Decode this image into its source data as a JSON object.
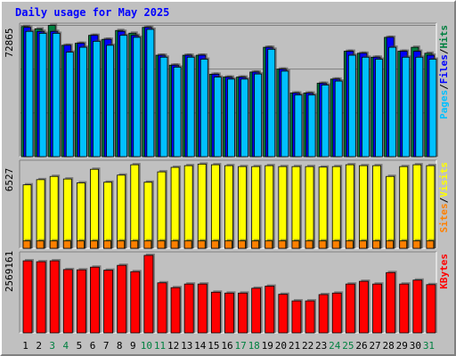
{
  "title": "Daily usage for May 2025",
  "colors": {
    "background": "#c0c0c0",
    "title": "#0000ff",
    "hits": "#008040",
    "files": "#0000ff",
    "pages": "#00c0ff",
    "visits": "#ffff00",
    "sites": "#ff8000",
    "kbytes": "#ff0000",
    "weekend_day_label": "#008040",
    "weekday_label": "#000000"
  },
  "chart_data": [
    {
      "type": "bar",
      "title": "Daily usage for May 2025",
      "y_max_label": "72865",
      "ylim": [
        0,
        72865
      ],
      "legend": [
        "Pages",
        "/",
        "Files",
        "/",
        "Hits"
      ],
      "categories": [
        "1",
        "2",
        "3",
        "4",
        "5",
        "6",
        "7",
        "8",
        "9",
        "10",
        "11",
        "12",
        "13",
        "14",
        "15",
        "16",
        "17",
        "18",
        "19",
        "20",
        "21",
        "22",
        "23",
        "24",
        "25",
        "26",
        "27",
        "28",
        "29",
        "30",
        "31"
      ],
      "weekend_days": [
        "3",
        "4",
        "10",
        "11",
        "17",
        "18",
        "24",
        "25",
        "31"
      ],
      "series": [
        {
          "name": "Hits",
          "values": [
            72000,
            70700,
            72600,
            61600,
            62700,
            67100,
            64900,
            69800,
            68300,
            71500,
            56100,
            50600,
            56100,
            56100,
            45600,
            44000,
            44000,
            46800,
            60500,
            48400,
            35200,
            35200,
            40600,
            42900,
            58300,
            57200,
            55000,
            66000,
            58300,
            60500,
            57200
          ]
        },
        {
          "name": "Files",
          "values": [
            71500,
            69300,
            69300,
            61600,
            62700,
            67100,
            64900,
            69300,
            67100,
            71500,
            56100,
            50600,
            56100,
            56100,
            45600,
            44000,
            44000,
            46800,
            60500,
            48400,
            35200,
            35200,
            40600,
            42900,
            58300,
            57200,
            55000,
            66000,
            58300,
            58300,
            56100
          ]
        },
        {
          "name": "Pages",
          "values": [
            69300,
            68200,
            68200,
            57800,
            60500,
            63800,
            61600,
            67100,
            66000,
            70400,
            55000,
            49500,
            55000,
            53900,
            44000,
            42900,
            42900,
            45700,
            59400,
            47300,
            34100,
            34100,
            39600,
            41800,
            56100,
            55000,
            53900,
            60500,
            55000,
            55000,
            53900
          ]
        }
      ]
    },
    {
      "type": "bar",
      "y_max_label": "6527",
      "ylim": [
        0,
        6527
      ],
      "legend": [
        "Sites",
        "/",
        "Visits"
      ],
      "categories": [
        "1",
        "2",
        "3",
        "4",
        "5",
        "6",
        "7",
        "8",
        "9",
        "10",
        "11",
        "12",
        "13",
        "14",
        "15",
        "16",
        "17",
        "18",
        "19",
        "20",
        "21",
        "22",
        "23",
        "24",
        "25",
        "26",
        "27",
        "28",
        "29",
        "30",
        "31"
      ],
      "series": [
        {
          "name": "Visits",
          "values": [
            4900,
            5300,
            5550,
            5350,
            5050,
            6100,
            5100,
            5650,
            6450,
            5100,
            5900,
            6250,
            6380,
            6500,
            6450,
            6380,
            6310,
            6310,
            6380,
            6310,
            6310,
            6310,
            6270,
            6310,
            6450,
            6380,
            6380,
            5550,
            6310,
            6450,
            6380
          ]
        },
        {
          "name": "Sites",
          "values": [
            570,
            570,
            570,
            570,
            570,
            570,
            570,
            570,
            570,
            570,
            570,
            570,
            570,
            570,
            570,
            570,
            570,
            570,
            570,
            570,
            570,
            570,
            570,
            570,
            570,
            570,
            570,
            570,
            570,
            570,
            570
          ]
        }
      ]
    },
    {
      "type": "bar",
      "y_max_label": "2569161",
      "ylim": [
        0,
        2569161
      ],
      "legend": [
        "KBytes"
      ],
      "categories": [
        "1",
        "2",
        "3",
        "4",
        "5",
        "6",
        "7",
        "8",
        "9",
        "10",
        "11",
        "12",
        "13",
        "14",
        "15",
        "16",
        "17",
        "18",
        "19",
        "20",
        "21",
        "22",
        "23",
        "24",
        "25",
        "26",
        "27",
        "28",
        "29",
        "30",
        "31"
      ],
      "series": [
        {
          "name": "KBytes",
          "values": [
            2390000,
            2360000,
            2390000,
            2100000,
            2090000,
            2180000,
            2080000,
            2240000,
            2030000,
            2570000,
            1660000,
            1500000,
            1620000,
            1620000,
            1350000,
            1320000,
            1320000,
            1480000,
            1550000,
            1280000,
            1060000,
            1060000,
            1270000,
            1320000,
            1620000,
            1710000,
            1620000,
            2000000,
            1620000,
            1750000,
            1600000
          ]
        }
      ]
    }
  ]
}
